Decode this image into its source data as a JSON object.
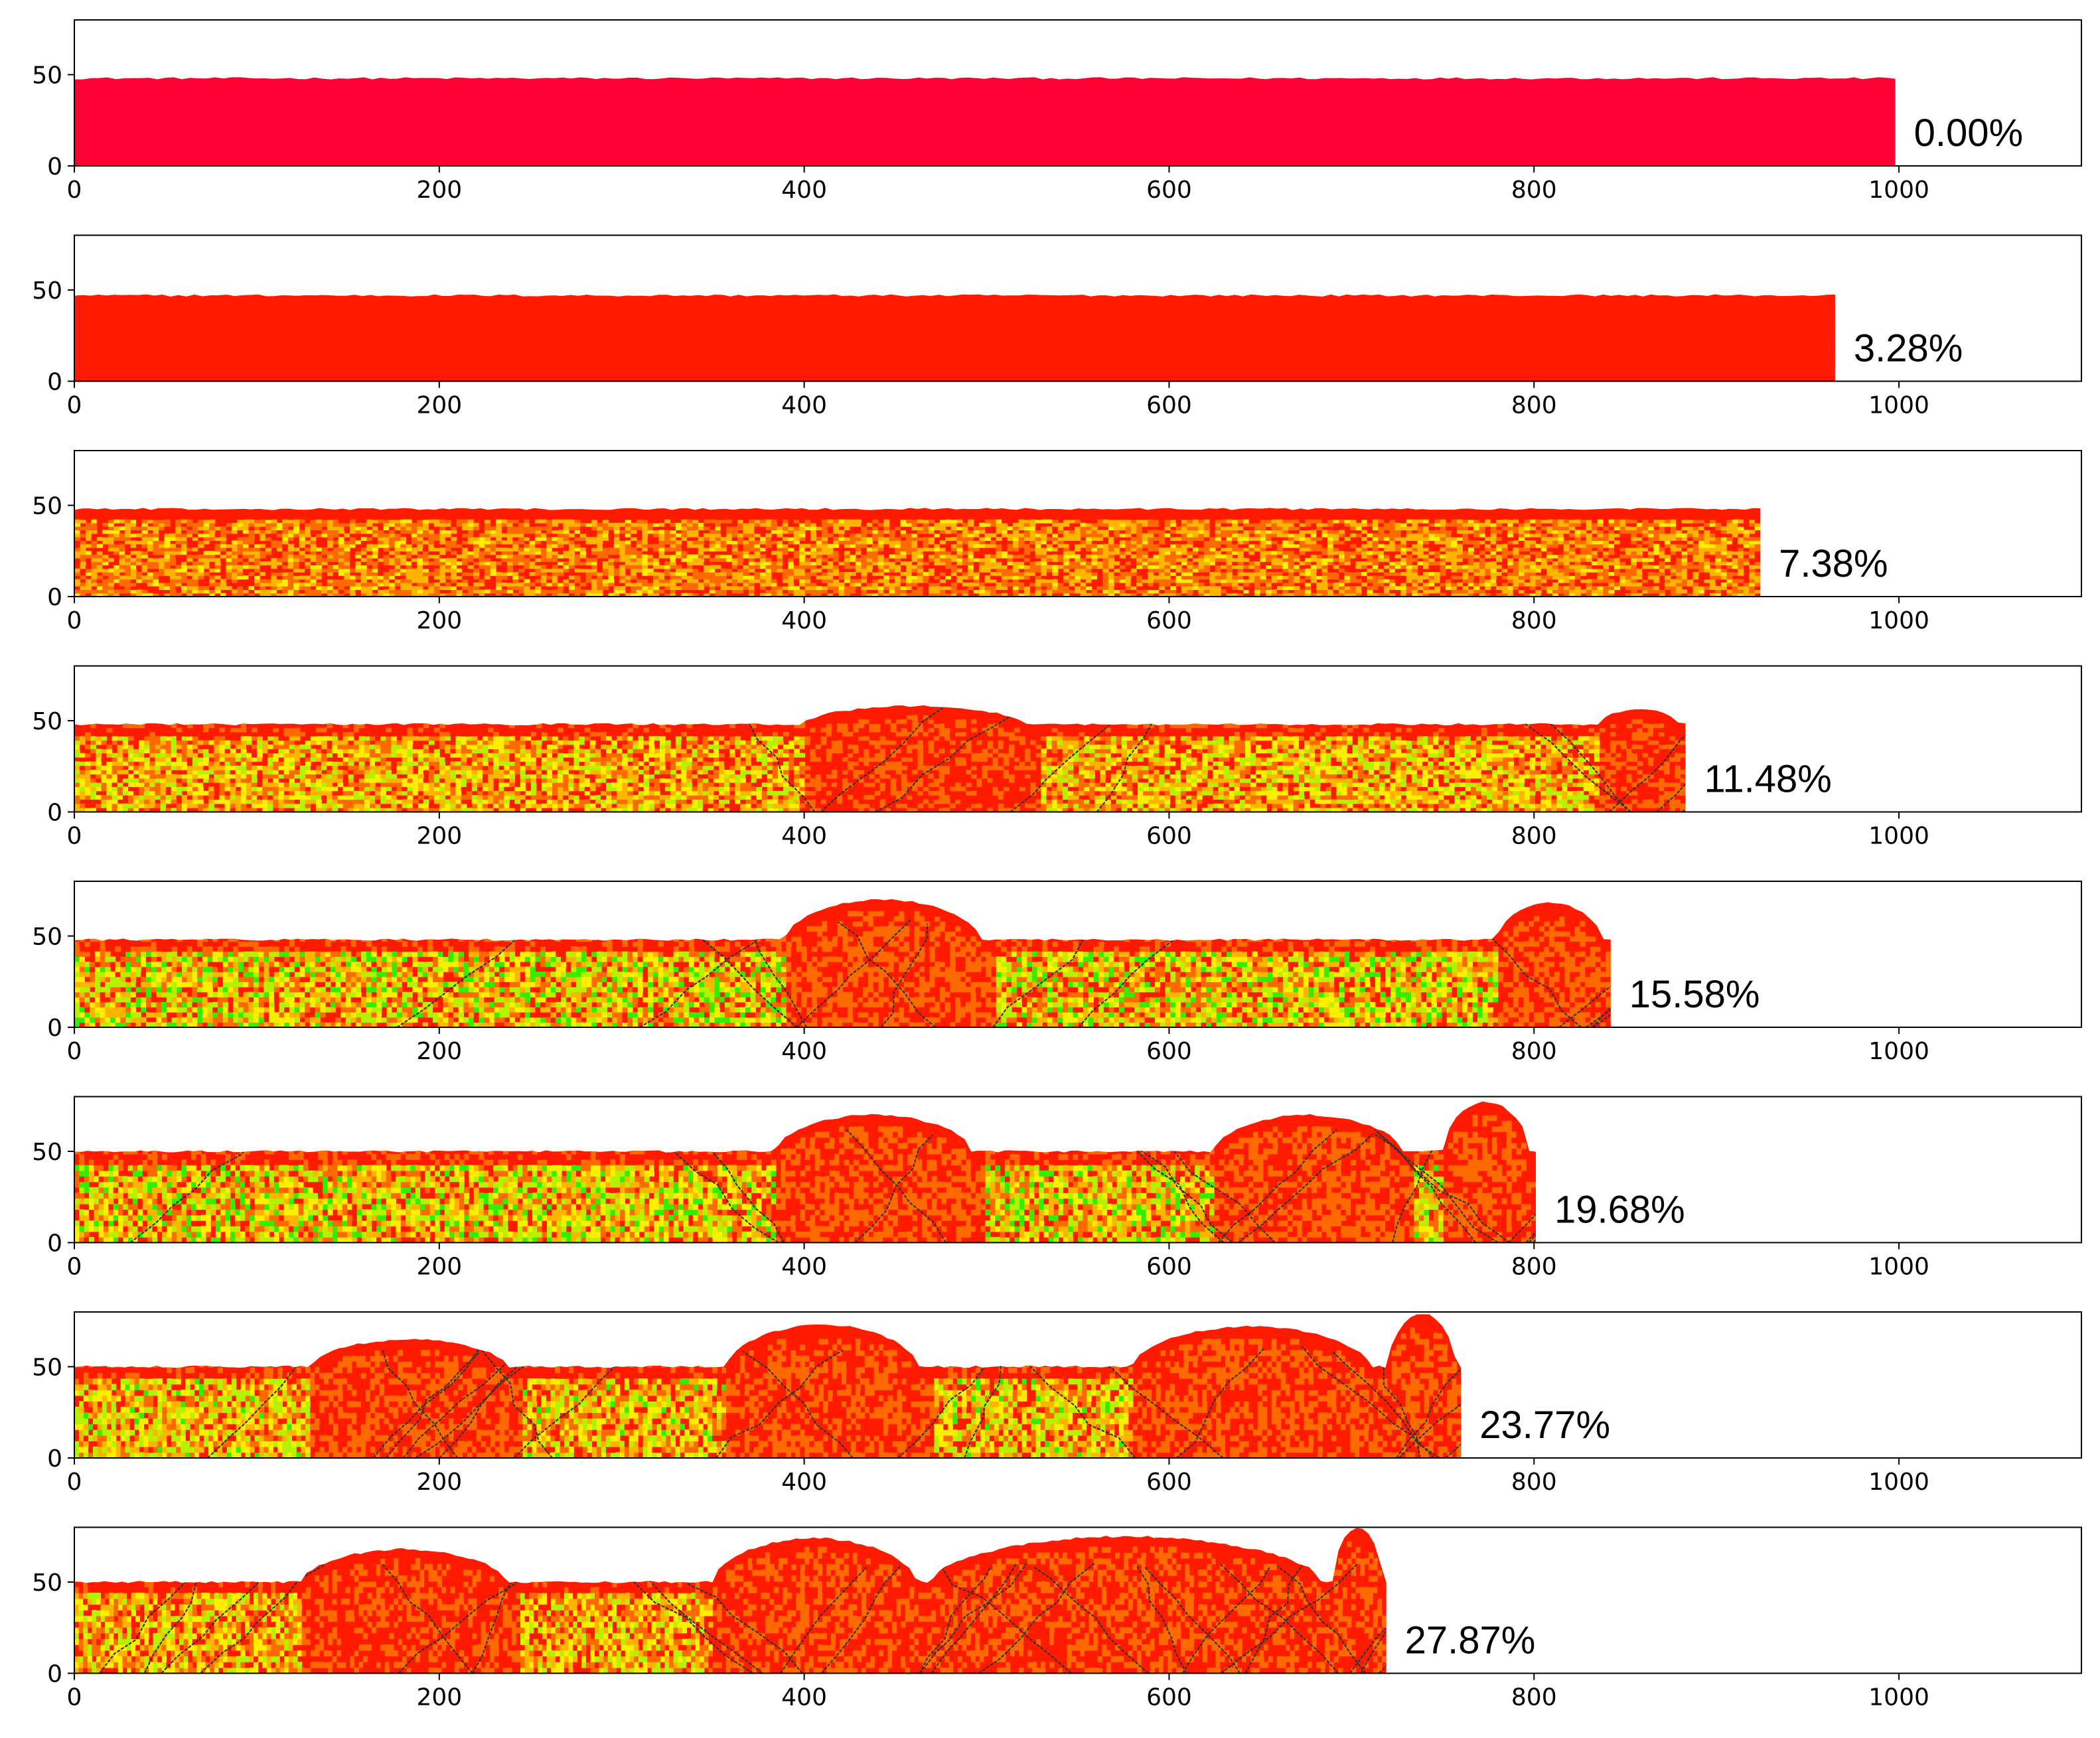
{
  "colors": {
    "background": "#ffffff",
    "axes": "#000000",
    "initial_fill": "#ff0033",
    "colormap": [
      "#ff1a00",
      "#ff6a00",
      "#ffb400",
      "#ffee00",
      "#b6f200",
      "#33ee00"
    ],
    "crack": "#333333"
  },
  "chart_data": [
    {
      "type": "heatmap",
      "label": "0.00%",
      "xlim": [
        0,
        1100
      ],
      "ylim": [
        0,
        80
      ],
      "xticks": [
        "0",
        "200",
        "400",
        "600",
        "800",
        "1000"
      ],
      "yticks": [
        "0",
        "50"
      ],
      "specimen_length": 998,
      "base_height": 48,
      "mounds": [],
      "cracks": 0,
      "green_level": 0
    },
    {
      "type": "heatmap",
      "label": "3.28%",
      "xlim": [
        0,
        1100
      ],
      "ylim": [
        0,
        80
      ],
      "xticks": [
        "0",
        "200",
        "400",
        "600",
        "800",
        "1000"
      ],
      "yticks": [
        "0",
        "50"
      ],
      "specimen_length": 965,
      "base_height": 47,
      "mounds": [],
      "cracks": 0,
      "green_level": 0.1
    },
    {
      "type": "heatmap",
      "label": "7.38%",
      "xlim": [
        0,
        1100
      ],
      "ylim": [
        0,
        80
      ],
      "xticks": [
        "0",
        "200",
        "400",
        "600",
        "800",
        "1000"
      ],
      "yticks": [
        "0",
        "50"
      ],
      "specimen_length": 924,
      "base_height": 48,
      "mounds": [],
      "cracks": 0,
      "green_level": 0.35
    },
    {
      "type": "heatmap",
      "label": "11.48%",
      "xlim": [
        0,
        1100
      ],
      "ylim": [
        0,
        80
      ],
      "xticks": [
        "0",
        "200",
        "400",
        "600",
        "800",
        "1000"
      ],
      "yticks": [
        "0",
        "50"
      ],
      "specimen_length": 883,
      "base_height": 48,
      "mounds": [
        [
          400,
          530,
          58
        ],
        [
          835,
          883,
          56
        ]
      ],
      "cracks": 10,
      "green_level": 0.5
    },
    {
      "type": "heatmap",
      "label": "15.58%",
      "xlim": [
        0,
        1100
      ],
      "ylim": [
        0,
        80
      ],
      "xticks": [
        "0",
        "200",
        "400",
        "600",
        "800",
        "1000"
      ],
      "yticks": [
        "0",
        "50"
      ],
      "specimen_length": 842,
      "base_height": 48,
      "mounds": [
        [
          390,
          505,
          70
        ],
        [
          780,
          842,
          68
        ]
      ],
      "cracks": 14,
      "green_level": 0.6
    },
    {
      "type": "heatmap",
      "label": "19.68%",
      "xlim": [
        0,
        1100
      ],
      "ylim": [
        0,
        80
      ],
      "xticks": [
        "0",
        "200",
        "400",
        "600",
        "800",
        "1000"
      ],
      "yticks": [
        "0",
        "50"
      ],
      "specimen_length": 801,
      "base_height": 50,
      "mounds": [
        [
          385,
          500,
          70
        ],
        [
          625,
          735,
          70
        ],
        [
          750,
          801,
          77
        ]
      ],
      "cracks": 18,
      "green_level": 0.6
    },
    {
      "type": "heatmap",
      "label": "23.77%",
      "xlim": [
        0,
        1100
      ],
      "ylim": [
        0,
        80
      ],
      "xticks": [
        "0",
        "200",
        "400",
        "600",
        "800",
        "1000"
      ],
      "yticks": [
        "0",
        "50"
      ],
      "specimen_length": 760,
      "base_height": 50,
      "mounds": [
        [
          130,
          245,
          65
        ],
        [
          358,
          470,
          73
        ],
        [
          580,
          720,
          72
        ],
        [
          720,
          760,
          79
        ]
      ],
      "cracks": 22,
      "green_level": 0.55
    },
    {
      "type": "heatmap",
      "label": "27.87%",
      "xlim": [
        0,
        1100
      ],
      "ylim": [
        0,
        80
      ],
      "xticks": [
        "0",
        "200",
        "400",
        "600",
        "800",
        "1000"
      ],
      "yticks": [
        "0",
        "50"
      ],
      "specimen_length": 719,
      "base_height": 50,
      "mounds": [
        [
          125,
          245,
          68
        ],
        [
          350,
          470,
          74
        ],
        [
          470,
          700,
          75
        ],
        [
          690,
          719,
          80
        ]
      ],
      "cracks": 28,
      "green_level": 0.5
    }
  ]
}
